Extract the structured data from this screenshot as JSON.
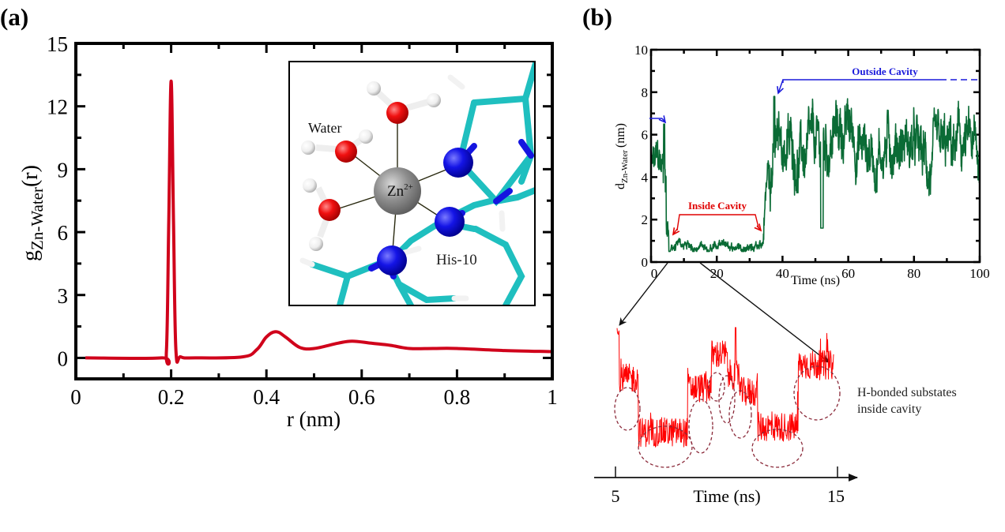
{
  "panel_labels": {
    "a": "(a)",
    "b": "(b)"
  },
  "colors": {
    "rdf": "#d0021b",
    "trace": "#0a6b35",
    "zoom_trace": "#ff0000",
    "blue_annot": "#1a1adb",
    "red_annot": "#e00000",
    "circle": "#8b2a3a",
    "cyan": "#1fbfbf",
    "oxygen": "#ee1111",
    "nitrogen": "#1515e0",
    "zinc": "#8a8a8a"
  },
  "chart_data": [
    {
      "type": "line",
      "panel": "(a)",
      "title": "",
      "xlabel": "r (nm)",
      "ylabel_main": "g",
      "ylabel_sub": "Zn-Water",
      "ylabel_tail": "(r)",
      "xlim": [
        0,
        1
      ],
      "ylim": [
        -1,
        15
      ],
      "xticks": [
        "0",
        "0.2",
        "0.4",
        "0.6",
        "0.8",
        "1"
      ],
      "xtick_values": [
        0,
        0.2,
        0.4,
        0.6,
        0.8,
        1
      ],
      "yticks": [
        "0",
        "3",
        "6",
        "9",
        "12",
        "15"
      ],
      "ytick_values": [
        0,
        3,
        6,
        9,
        12,
        15
      ],
      "series": [
        {
          "name": "g_Zn-Water(r)",
          "x": [
            0.02,
            0.18,
            0.19,
            0.195,
            0.2,
            0.205,
            0.21,
            0.22,
            0.25,
            0.35,
            0.38,
            0.4,
            0.42,
            0.44,
            0.47,
            0.5,
            0.55,
            0.58,
            0.62,
            0.66,
            0.7,
            0.75,
            0.8,
            0.9,
            1.0
          ],
          "y": [
            0,
            0,
            0.3,
            6.5,
            13.2,
            6.5,
            0.4,
            0.05,
            0,
            0.05,
            0.4,
            1.0,
            1.25,
            1.0,
            0.5,
            0.45,
            0.7,
            0.8,
            0.7,
            0.6,
            0.45,
            0.45,
            0.45,
            0.35,
            0.3
          ]
        }
      ],
      "inset": {
        "labels": {
          "water": "Water",
          "zinc": "Zn",
          "zinc_charge": "2+",
          "histidine": "His-10"
        }
      }
    },
    {
      "type": "line",
      "panel": "(b)",
      "xlabel": "Time (ns)",
      "ylabel_main": "d",
      "ylabel_sub": "Zn-Water",
      "ylabel_tail": "(nm)",
      "xlim": [
        0,
        100
      ],
      "ylim": [
        0,
        10
      ],
      "xticks": [
        "0",
        "20",
        "40",
        "60",
        "80",
        "100"
      ],
      "xtick_values": [
        0,
        20,
        40,
        60,
        80,
        100
      ],
      "yticks": [
        "0",
        "2",
        "4",
        "6",
        "8",
        "10"
      ],
      "ytick_values": [
        0,
        2,
        4,
        6,
        8,
        10
      ],
      "series": [
        {
          "name": "d_Zn-Water",
          "segments": [
            {
              "t_start": 0,
              "t_end": 5,
              "mean": 4.4,
              "spread": 1.2,
              "peak": 6.5
            },
            {
              "t_start": 5,
              "t_end": 34,
              "mean": 0.75,
              "spread": 0.25,
              "peak": 1.4
            },
            {
              "t_start": 34,
              "t_end": 100,
              "mean": 5.3,
              "spread": 1.5,
              "peak": 8.1,
              "min": 1.6
            }
          ]
        }
      ],
      "annotations": [
        {
          "text": "Outside Cavity",
          "color": "blue"
        },
        {
          "text": "Inside Cavity",
          "color": "red"
        }
      ]
    },
    {
      "type": "line",
      "panel": "(b) zoom",
      "xlabel": "Time (ns)",
      "xlim": [
        5,
        15
      ],
      "xticks": [
        "5",
        "15"
      ],
      "xtick_values": [
        5,
        15
      ],
      "series": [
        {
          "name": "d_Zn-Water (5-15 ns)",
          "substate_levels": [
            0.62,
            0.28,
            0.55,
            0.82,
            0.65,
            0.55,
            0.3,
            0.7
          ]
        }
      ],
      "annotation": {
        "line1": "H-bonded substates",
        "line2": "inside cavity"
      }
    }
  ]
}
